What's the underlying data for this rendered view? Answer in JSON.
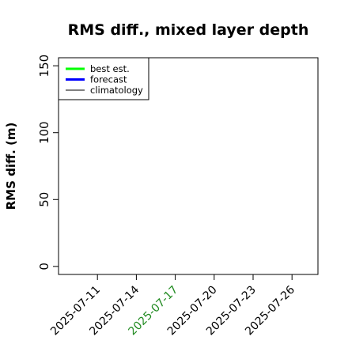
{
  "chart_data": {
    "type": "line",
    "title": "RMS diff., mixed layer depth",
    "ylabel": "RMS diff. (m)",
    "x": [],
    "series": [
      {
        "name": "best est.",
        "color": "#00ff00",
        "linewidth": 3,
        "values": []
      },
      {
        "name": "forecast",
        "color": "#0000ff",
        "linewidth": 3,
        "values": []
      },
      {
        "name": "climatology",
        "color": "#000000",
        "linewidth": 1,
        "values": []
      }
    ],
    "xlim": [
      "2025-07-08",
      "2025-07-28"
    ],
    "xticks": [
      "2025-07-11",
      "2025-07-14",
      "2025-07-17",
      "2025-07-20",
      "2025-07-23",
      "2025-07-26"
    ],
    "xtick_colors": [
      "#000000",
      "#000000",
      "#228b22",
      "#000000",
      "#000000",
      "#000000"
    ],
    "ylim": [
      -6,
      156
    ],
    "yticks": [
      0,
      50,
      100,
      150
    ],
    "legend": "top-left",
    "grid": false
  }
}
